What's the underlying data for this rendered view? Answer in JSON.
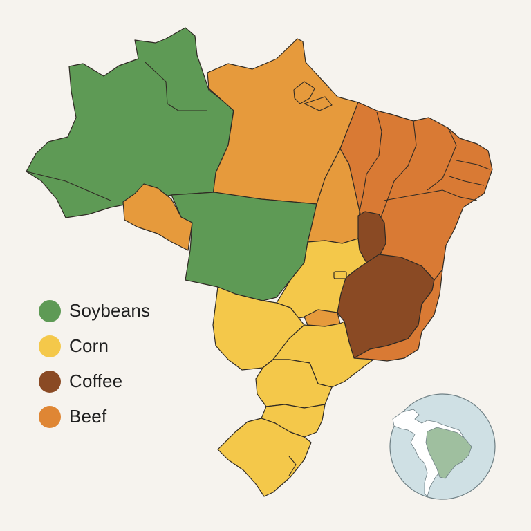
{
  "legend": {
    "items": [
      {
        "key": "soy",
        "label": "Soybeans",
        "color": "#5e9a55"
      },
      {
        "key": "corn",
        "label": "Corn",
        "color": "#f4c84a"
      },
      {
        "key": "coffee",
        "label": "Coffee",
        "color": "#8a4a24"
      },
      {
        "key": "beef",
        "label": "Beef",
        "color": "#df8634"
      }
    ]
  },
  "colors": {
    "beef_light": "#e69a3c",
    "beef_dark": "#d97a34",
    "ocean": "#cfe0e4",
    "globe_land": "#ffffff",
    "globe_highlight": "#9fbf9f",
    "background": "#f6f3ee"
  },
  "inset_globe": {
    "highlighted_country": "Brazil"
  }
}
